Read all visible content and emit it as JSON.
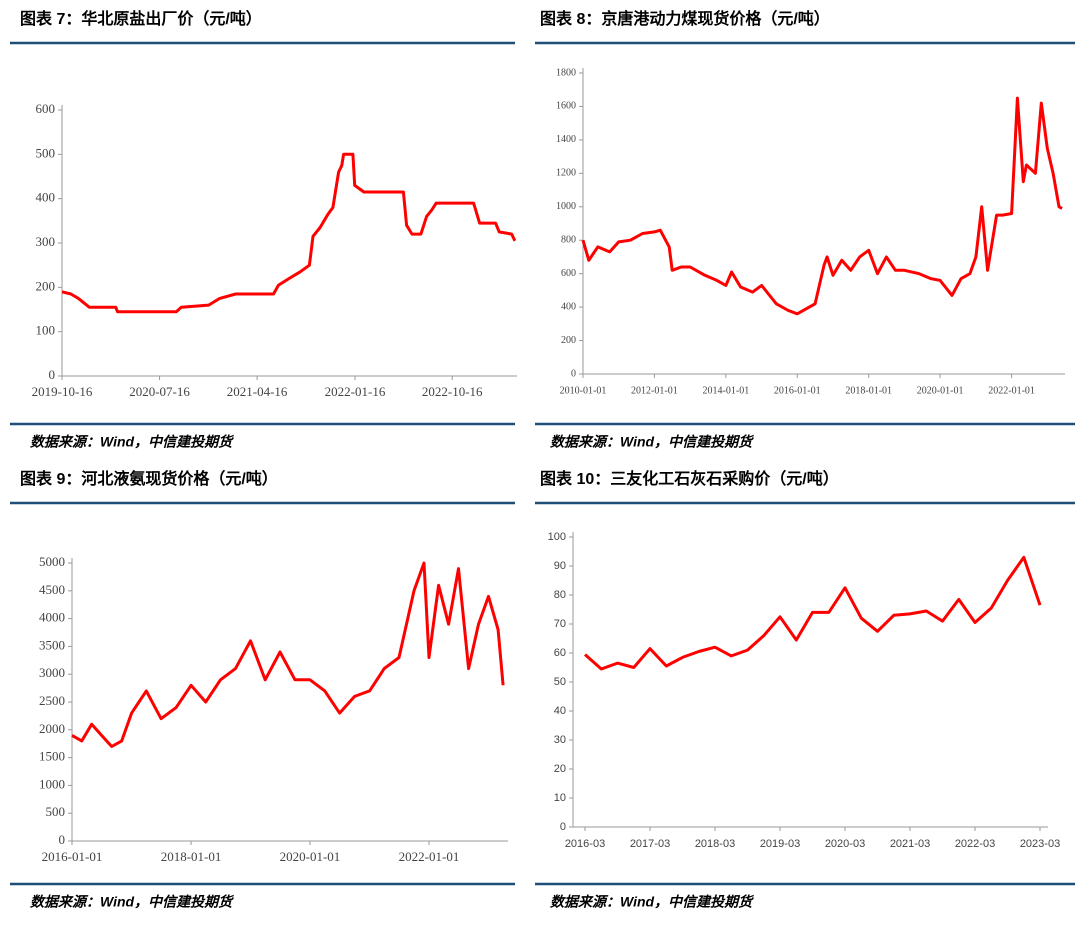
{
  "chart_data": [
    {
      "type": "line",
      "title": "图表 7：华北原盐出厂价（元/吨）",
      "source": "数据来源：Wind，中信建投期货",
      "color": "#ff0000",
      "x": [
        "2019-10-16",
        "2019-11-10",
        "2019-12-01",
        "2020-01-01",
        "2020-03-15",
        "2020-03-20",
        "2020-07-16",
        "2020-09-01",
        "2020-09-15",
        "2020-12-01",
        "2021-01-01",
        "2021-02-15",
        "2021-06-01",
        "2021-06-15",
        "2021-07-15",
        "2021-08-15",
        "2021-09-10",
        "2021-09-20",
        "2021-10-10",
        "2021-11-01",
        "2021-11-15",
        "2021-12-01",
        "2021-12-10",
        "2021-12-15",
        "2022-01-10",
        "2022-01-15",
        "2022-02-10",
        "2022-06-01",
        "2022-06-10",
        "2022-06-25",
        "2022-07-20",
        "2022-08-05",
        "2022-08-20",
        "2022-09-01",
        "2022-12-15",
        "2023-01-01",
        "2023-02-15",
        "2023-02-25",
        "2023-04-01",
        "2023-04-10"
      ],
      "values": [
        190,
        185,
        175,
        155,
        155,
        145,
        145,
        145,
        155,
        160,
        175,
        185,
        185,
        205,
        220,
        235,
        250,
        315,
        335,
        365,
        380,
        460,
        475,
        500,
        500,
        430,
        415,
        415,
        340,
        320,
        320,
        360,
        375,
        390,
        390,
        345,
        345,
        325,
        320,
        305
      ],
      "xlim": [
        "2019-10-16",
        "2023-04-16"
      ],
      "xticks": [
        "2019-10-16",
        "2020-07-16",
        "2021-04-16",
        "2022-01-16",
        "2022-10-16"
      ],
      "ylim": [
        0,
        600
      ],
      "yticks": [
        0,
        100,
        200,
        300,
        400,
        500,
        600
      ]
    },
    {
      "type": "line",
      "title": "图表 8：京唐港动力煤现货价格（元/吨）",
      "source": "数据来源：Wind，中信建投期货",
      "color": "#ff0000",
      "x": [
        "2010-01",
        "2010-03",
        "2010-06",
        "2010-10",
        "2011-01",
        "2011-05",
        "2011-09",
        "2012-01",
        "2012-03",
        "2012-06",
        "2012-07",
        "2012-10",
        "2013-01",
        "2013-06",
        "2013-10",
        "2014-01",
        "2014-03",
        "2014-06",
        "2014-10",
        "2015-01",
        "2015-06",
        "2015-10",
        "2016-01",
        "2016-04",
        "2016-07",
        "2016-10",
        "2016-11",
        "2017-01",
        "2017-04",
        "2017-07",
        "2017-10",
        "2018-01",
        "2018-04",
        "2018-07",
        "2018-10",
        "2019-01",
        "2019-06",
        "2019-10",
        "2020-01",
        "2020-05",
        "2020-08",
        "2020-11",
        "2021-01",
        "2021-03",
        "2021-05",
        "2021-08",
        "2021-10",
        "2022-01",
        "2022-03",
        "2022-05",
        "2022-06",
        "2022-09",
        "2022-11",
        "2023-01",
        "2023-03",
        "2023-05",
        "2023-06"
      ],
      "values": [
        800,
        680,
        760,
        730,
        790,
        800,
        840,
        850,
        860,
        760,
        620,
        640,
        640,
        590,
        560,
        530,
        610,
        520,
        490,
        530,
        420,
        380,
        360,
        390,
        420,
        650,
        700,
        590,
        680,
        620,
        700,
        740,
        600,
        700,
        620,
        620,
        600,
        570,
        560,
        470,
        570,
        600,
        700,
        1000,
        620,
        950,
        950,
        960,
        1650,
        1150,
        1250,
        1200,
        1620,
        1350,
        1200,
        1000,
        990
      ],
      "xlim": [
        "2010-01-01",
        "2023-07-01"
      ],
      "xticks": [
        "2010-01-01",
        "2012-01-01",
        "2014-01-01",
        "2016-01-01",
        "2018-01-01",
        "2020-01-01",
        "2022-01-01"
      ],
      "ylim": [
        0,
        1800
      ],
      "yticks": [
        0,
        200,
        400,
        600,
        800,
        1000,
        1200,
        1400,
        1600,
        1800
      ]
    },
    {
      "type": "line",
      "title": "图表 9：河北液氨现货价格（元/吨）",
      "source": "数据来源：Wind，中信建投期货",
      "color": "#ff0000",
      "x": [
        "2016-01",
        "2016-03",
        "2016-05",
        "2016-07",
        "2016-09",
        "2016-11",
        "2017-01",
        "2017-04",
        "2017-07",
        "2017-10",
        "2018-01",
        "2018-04",
        "2018-07",
        "2018-10",
        "2019-01",
        "2019-04",
        "2019-07",
        "2019-10",
        "2020-01",
        "2020-04",
        "2020-07",
        "2020-10",
        "2021-01",
        "2021-04",
        "2021-07",
        "2021-10",
        "2021-12",
        "2022-01",
        "2022-03",
        "2022-05",
        "2022-07",
        "2022-09",
        "2022-11",
        "2023-01",
        "2023-03",
        "2023-04"
      ],
      "values": [
        1900,
        1800,
        2100,
        1900,
        1700,
        1800,
        2300,
        2700,
        2200,
        2400,
        2800,
        2500,
        2900,
        3100,
        3600,
        2900,
        3400,
        2900,
        2900,
        2700,
        2300,
        2600,
        2700,
        3100,
        3300,
        4500,
        5000,
        3300,
        4600,
        3900,
        4900,
        3100,
        3900,
        4400,
        3800,
        2800
      ],
      "xlim": [
        "2016-01-01",
        "2023-05-01"
      ],
      "xticks": [
        "2016-01-01",
        "2018-01-01",
        "2020-01-01",
        "2022-01-01"
      ],
      "ylim": [
        0,
        5000
      ],
      "yticks": [
        0,
        500,
        1000,
        1500,
        2000,
        2500,
        3000,
        3500,
        4000,
        4500,
        5000
      ]
    },
    {
      "type": "line",
      "title": "图表 10：三友化工石灰石采购价（元/吨）",
      "source": "数据来源：Wind，中信建投期货",
      "color": "#ff0000",
      "categories": [
        "2016-03",
        null,
        null,
        null,
        "2017-03",
        null,
        null,
        null,
        "2018-03",
        null,
        null,
        null,
        "2019-03",
        null,
        null,
        null,
        "2020-03",
        null,
        null,
        null,
        "2021-03",
        null,
        null,
        null,
        "2022-03",
        null,
        null,
        null,
        "2023-03"
      ],
      "values": [
        59.5,
        54.5,
        56.5,
        55,
        61.5,
        55.5,
        58.5,
        60.5,
        62,
        59,
        61,
        66,
        72.5,
        64.5,
        74,
        74,
        82.5,
        72,
        67.5,
        73,
        73.5,
        74.5,
        71,
        78.5,
        70.5,
        75.5,
        85,
        93,
        76.5
      ],
      "ylim": [
        0,
        100
      ],
      "yticks": [
        0,
        10,
        20,
        30,
        40,
        50,
        60,
        70,
        80,
        90,
        100
      ]
    }
  ]
}
